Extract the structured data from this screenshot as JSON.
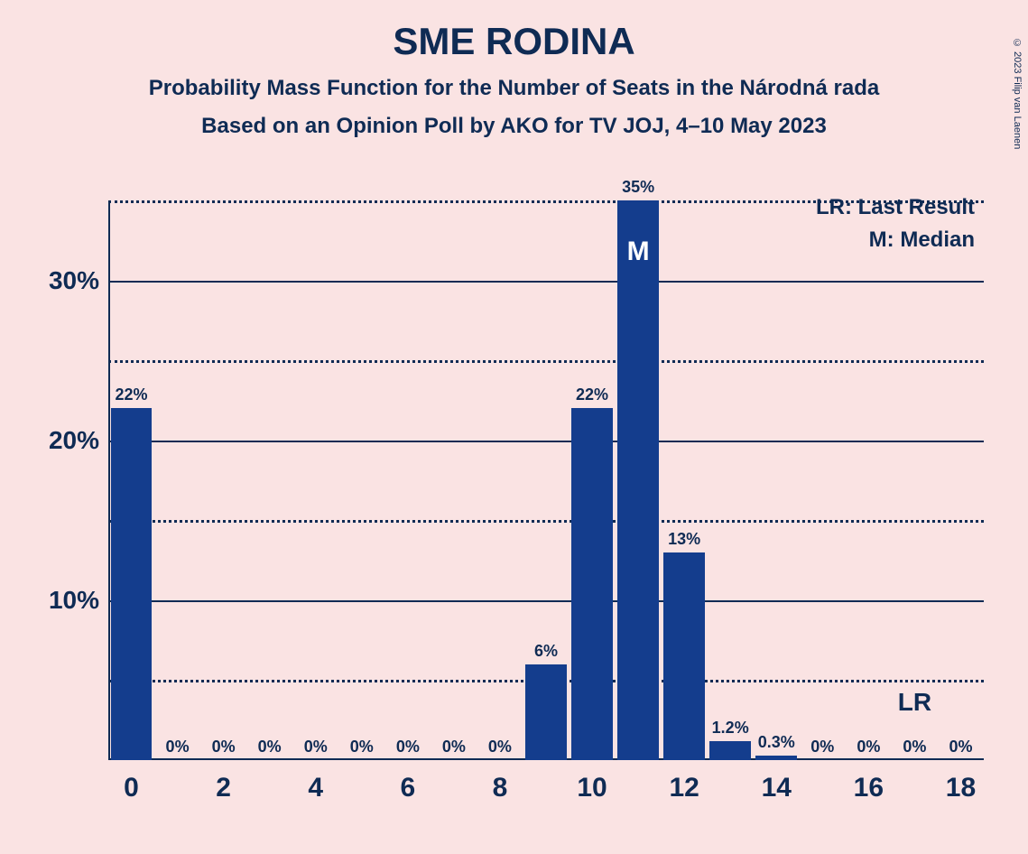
{
  "title": "SME RODINA",
  "subtitle1": "Probability Mass Function for the Number of Seats in the Národná rada",
  "subtitle2": "Based on an Opinion Poll by AKO for TV JOJ, 4–10 May 2023",
  "copyright": "© 2023 Filip van Laenen",
  "legend": {
    "lr": "LR: Last Result",
    "m": "M: Median"
  },
  "chart": {
    "type": "bar",
    "background_color": "#fae3e3",
    "bar_color": "#143d8d",
    "text_color": "#0f2b54",
    "grid_color": "#0f2b54",
    "ylim_max": 35,
    "y_major_ticks": [
      10,
      20,
      30
    ],
    "y_minor_ticks": [
      5,
      15,
      25,
      35
    ],
    "x_ticks": [
      0,
      2,
      4,
      6,
      8,
      10,
      12,
      14,
      16,
      18
    ],
    "x_min": 0,
    "x_max": 18,
    "bars": [
      {
        "x": 0,
        "value": 22,
        "label": "22%"
      },
      {
        "x": 1,
        "value": 0,
        "label": "0%"
      },
      {
        "x": 2,
        "value": 0,
        "label": "0%"
      },
      {
        "x": 3,
        "value": 0,
        "label": "0%"
      },
      {
        "x": 4,
        "value": 0,
        "label": "0%"
      },
      {
        "x": 5,
        "value": 0,
        "label": "0%"
      },
      {
        "x": 6,
        "value": 0,
        "label": "0%"
      },
      {
        "x": 7,
        "value": 0,
        "label": "0%"
      },
      {
        "x": 8,
        "value": 0,
        "label": "0%"
      },
      {
        "x": 9,
        "value": 6,
        "label": "6%"
      },
      {
        "x": 10,
        "value": 22,
        "label": "22%"
      },
      {
        "x": 11,
        "value": 35,
        "label": "35%",
        "inner_label": "M"
      },
      {
        "x": 12,
        "value": 13,
        "label": "13%"
      },
      {
        "x": 13,
        "value": 1.2,
        "label": "1.2%"
      },
      {
        "x": 14,
        "value": 0.3,
        "label": "0.3%"
      },
      {
        "x": 15,
        "value": 0,
        "label": "0%"
      },
      {
        "x": 16,
        "value": 0,
        "label": "0%"
      },
      {
        "x": 17,
        "value": 0,
        "label": "0%"
      },
      {
        "x": 18,
        "value": 0,
        "label": "0%"
      }
    ],
    "lr_marker": {
      "x": 17,
      "label": "LR"
    }
  }
}
